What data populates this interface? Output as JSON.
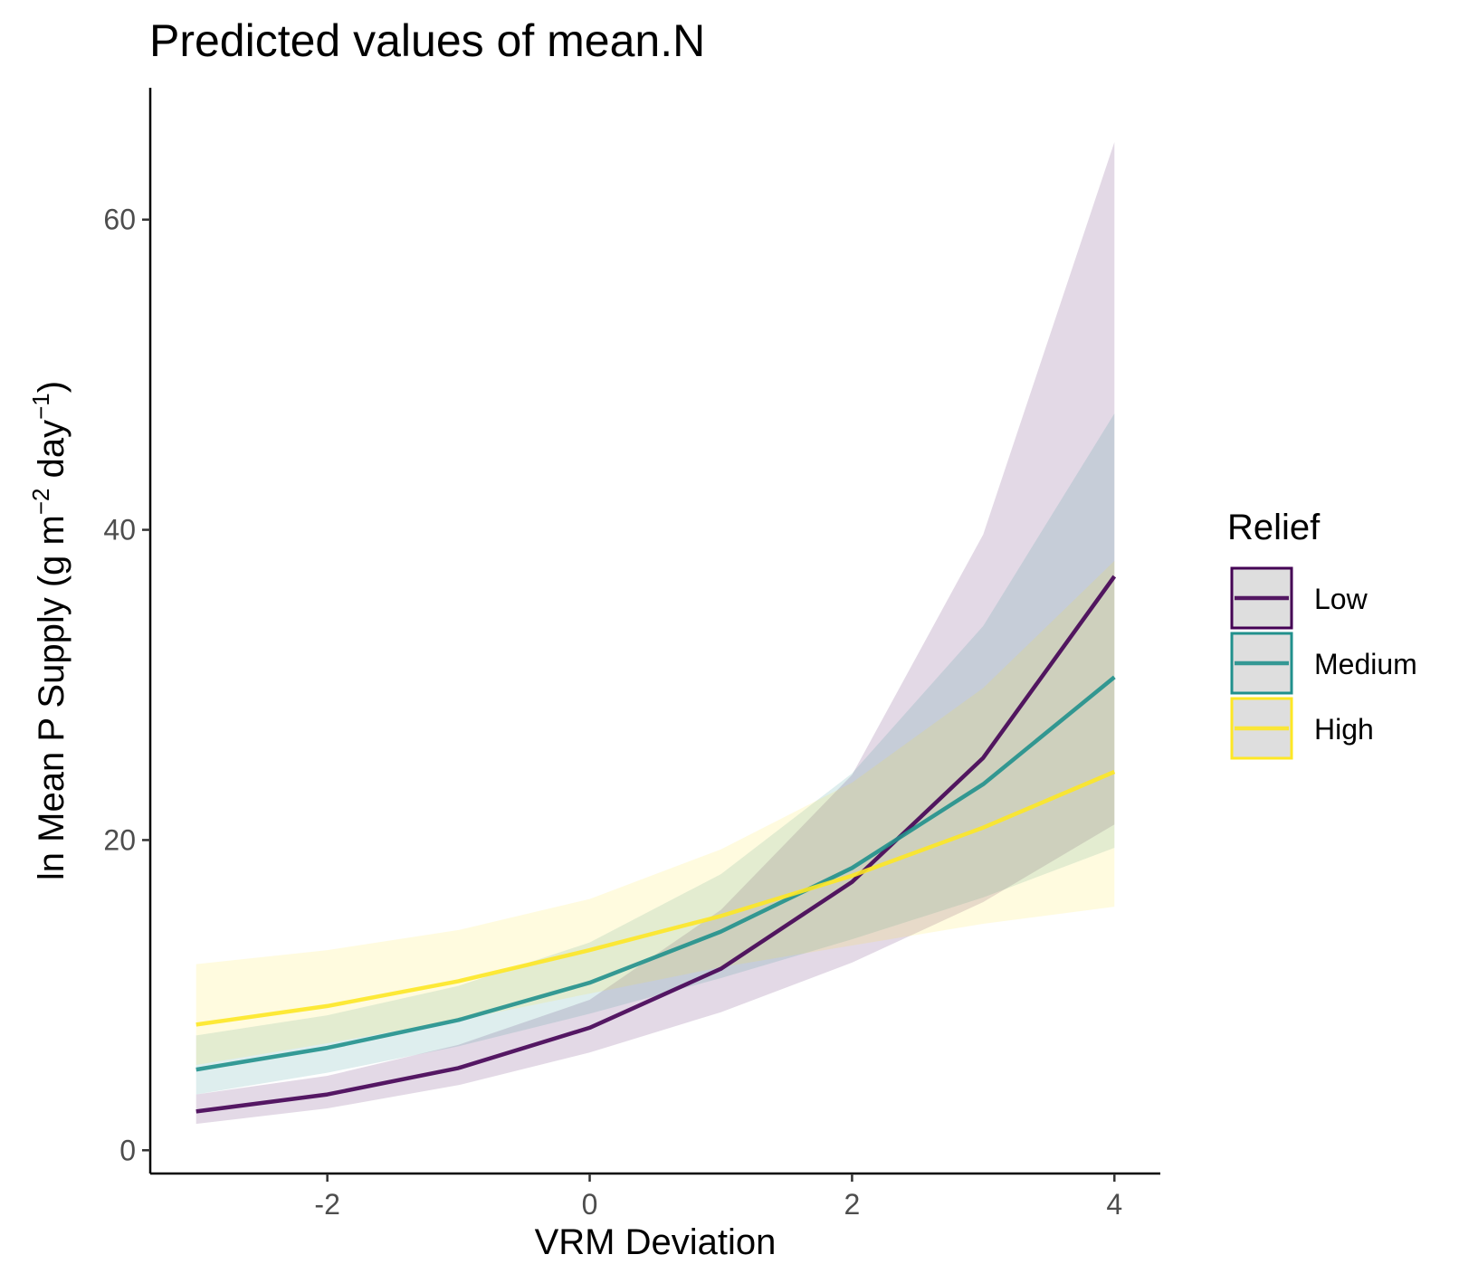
{
  "chart_data": {
    "type": "line",
    "title": "Predicted values of mean.N",
    "xlabel": "VRM Deviation",
    "ylabel": {
      "prefix": "ln Mean P Supply (g m",
      "exp1": "−2",
      "middle": " day",
      "exp2": "−1",
      "suffix": ")"
    },
    "xlim": [
      -3.35,
      4.35
    ],
    "ylim": [
      -1.5,
      68.5
    ],
    "xticks": [
      -2,
      0,
      2,
      4
    ],
    "xtick_labels": [
      "-2",
      "0",
      "2",
      "4"
    ],
    "yticks": [
      0,
      20,
      40,
      60
    ],
    "ytick_labels": [
      "0",
      "20",
      "40",
      "60"
    ],
    "grid": false,
    "legend": {
      "title": "Relief",
      "position": "right"
    },
    "x": [
      -3,
      -2,
      -1,
      0,
      1,
      2,
      3,
      4
    ],
    "series": [
      {
        "name": "Low",
        "color": "#440154",
        "values": [
          2.5,
          3.6,
          5.3,
          7.9,
          11.7,
          17.3,
          25.3,
          37.0
        ],
        "lower": [
          1.7,
          2.7,
          4.2,
          6.3,
          8.9,
          12.1,
          16.0,
          21.0
        ],
        "upper": [
          3.6,
          4.8,
          6.8,
          9.7,
          15.5,
          24.2,
          39.7,
          65.0
        ]
      },
      {
        "name": "Medium",
        "color": "#21908C",
        "values": [
          5.2,
          6.6,
          8.4,
          10.8,
          14.1,
          18.2,
          23.6,
          30.5
        ],
        "lower": [
          3.6,
          5.0,
          6.7,
          8.8,
          11.1,
          13.6,
          16.3,
          19.5
        ],
        "upper": [
          7.4,
          8.7,
          10.6,
          13.4,
          17.8,
          24.3,
          33.8,
          47.5
        ]
      },
      {
        "name": "High",
        "color": "#FDE725",
        "values": [
          8.1,
          9.3,
          10.9,
          12.9,
          15.1,
          17.7,
          20.8,
          24.4
        ],
        "lower": [
          5.5,
          6.9,
          8.4,
          10.1,
          11.8,
          13.2,
          14.6,
          15.7
        ],
        "upper": [
          12.0,
          12.9,
          14.2,
          16.2,
          19.4,
          23.7,
          29.8,
          38.0
        ]
      }
    ]
  }
}
